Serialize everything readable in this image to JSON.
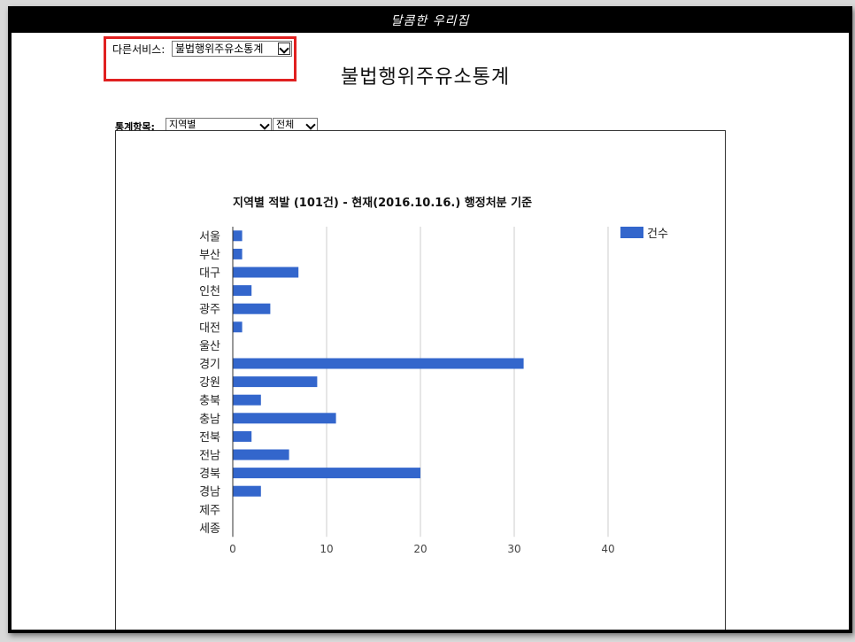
{
  "site": {
    "title": "달콤한 우리집"
  },
  "service": {
    "label": "다른서비스:",
    "selected": "불법행위주유소통계"
  },
  "page_title": "불법행위주유소통계",
  "filters": {
    "label": "통계항목:",
    "item_selected": "지역별",
    "scope_selected": "전체"
  },
  "colors": {
    "bar": "#3366cc",
    "grid": "#cccccc",
    "highlight_box": "#e02020"
  },
  "chart_data": {
    "type": "bar",
    "orientation": "horizontal",
    "title": "지역별 적발 (101건) - 현재(2016.10.16.) 행정처분 기준",
    "categories": [
      "서울",
      "부산",
      "대구",
      "인천",
      "광주",
      "대전",
      "울산",
      "경기",
      "강원",
      "충북",
      "충남",
      "전북",
      "전남",
      "경북",
      "경남",
      "제주",
      "세종"
    ],
    "series": [
      {
        "name": "건수",
        "values": [
          1,
          1,
          7,
          2,
          4,
          1,
          0,
          31,
          9,
          3,
          11,
          2,
          6,
          20,
          3,
          0,
          0
        ]
      }
    ],
    "xlim": [
      0,
      40
    ],
    "xticks": [
      0,
      10,
      20,
      30,
      40
    ],
    "grid": true,
    "legend_position": "top-right"
  }
}
